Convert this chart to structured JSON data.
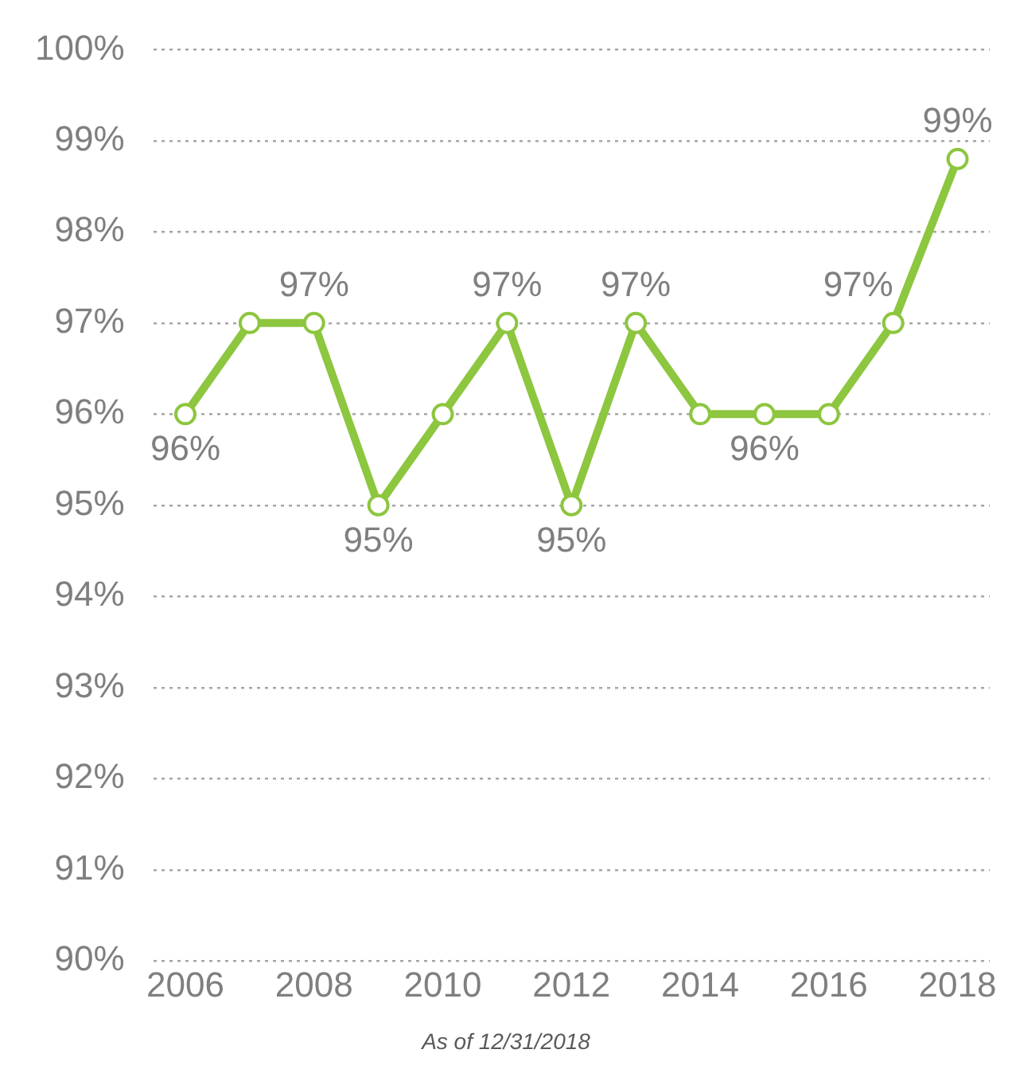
{
  "chart_data": {
    "type": "line",
    "x": [
      2006,
      2007,
      2008,
      2009,
      2010,
      2011,
      2012,
      2013,
      2014,
      2015,
      2016,
      2017,
      2018
    ],
    "series": [
      {
        "color": "#8dc63f",
        "values": [
          96,
          97,
          97,
          95,
          96,
          97,
          95,
          97,
          96,
          96,
          96,
          97,
          98.8
        ],
        "value_labels": [
          "96%",
          null,
          "97%",
          "95%",
          null,
          "97%",
          "95%",
          "97%",
          null,
          "96%",
          null,
          "97%",
          "99%"
        ]
      }
    ],
    "xlim": [
      2005.5,
      2018.5
    ],
    "xticks": [
      2006,
      2008,
      2010,
      2012,
      2014,
      2016,
      2018
    ],
    "ylim": [
      90,
      100
    ],
    "yticks": [
      {
        "value": 90,
        "label": "90%"
      },
      {
        "value": 91,
        "label": "91%"
      },
      {
        "value": 92,
        "label": "92%"
      },
      {
        "value": 93,
        "label": "93%"
      },
      {
        "value": 94,
        "label": "94%"
      },
      {
        "value": 95,
        "label": "95%"
      },
      {
        "value": 96,
        "label": "96%"
      },
      {
        "value": 97,
        "label": "97%"
      },
      {
        "value": 98,
        "label": "98%"
      },
      {
        "value": 99,
        "label": "99%"
      },
      {
        "value": 100,
        "label": "100%"
      }
    ],
    "grid": "y",
    "legend": false,
    "marker": "circle",
    "line_style": "solid",
    "annotations": [
      "As of 12/31/2018"
    ]
  }
}
